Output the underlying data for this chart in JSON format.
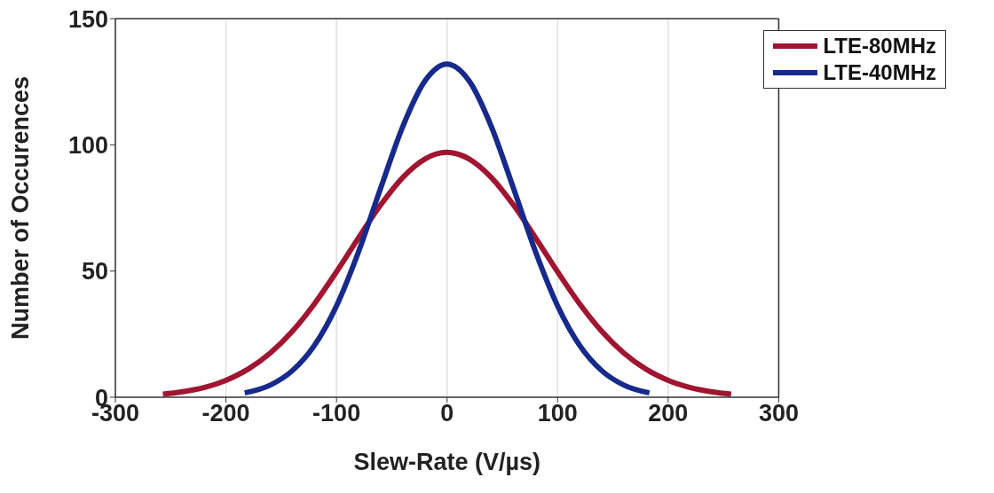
{
  "chart_data": {
    "type": "line",
    "xlabel": "Slew-Rate (V/µs)",
    "ylabel": "Number of Occurences",
    "xlim": [
      -300,
      300
    ],
    "xticks": [
      -300,
      -200,
      -100,
      0,
      100,
      200,
      300
    ],
    "ylim": [
      0,
      150
    ],
    "yticks": [
      0,
      50,
      100,
      150
    ],
    "grid": "x",
    "legend": "top right",
    "marker": "none",
    "line_style": "solid",
    "series": [
      {
        "name": "LTE-80MHz",
        "color": "#a01530",
        "x": [
          -257,
          -240,
          -220,
          -200,
          -180,
          -160,
          -140,
          -120,
          -100,
          -80,
          -60,
          -40,
          -20,
          0,
          20,
          40,
          60,
          80,
          100,
          120,
          140,
          160,
          180,
          200,
          220,
          240,
          257
        ],
        "values": [
          1.2,
          2.1,
          3.8,
          6.7,
          11.1,
          17.5,
          26.1,
          37,
          49.7,
          63.2,
          76.2,
          87.1,
          94.4,
          97,
          94.4,
          87.1,
          76.2,
          63.2,
          49.7,
          37,
          26.1,
          17.5,
          11.1,
          6.7,
          3.8,
          2.1,
          1.2
        ]
      },
      {
        "name": "LTE-40MHz",
        "color": "#172a8c",
        "x": [
          -183,
          -160,
          -140,
          -120,
          -100,
          -80,
          -60,
          -40,
          -20,
          0,
          20,
          40,
          60,
          80,
          100,
          120,
          140,
          160,
          183
        ],
        "values": [
          1.7,
          4.8,
          10.5,
          20.5,
          36.2,
          57.7,
          82.9,
          107.3,
          125.3,
          132,
          125.3,
          107.3,
          82.9,
          57.7,
          36.2,
          20.5,
          10.5,
          4.8,
          1.7
        ]
      }
    ]
  }
}
